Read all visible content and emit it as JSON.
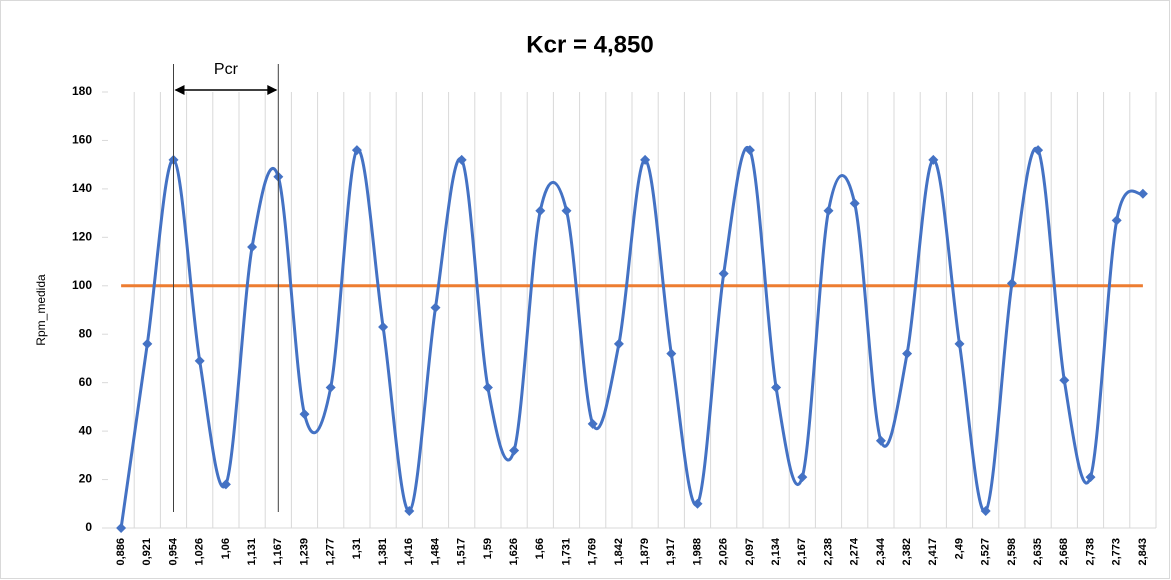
{
  "chart_data": {
    "type": "line",
    "title": "Kcr = 4,850",
    "y_label": "Rpm_medida",
    "annotation": "Pcr",
    "categories": [
      "0,886",
      "0,921",
      "0,954",
      "1,026",
      "1,06",
      "1,131",
      "1,167",
      "1,239",
      "1,277",
      "1,31",
      "1,381",
      "1,416",
      "1,484",
      "1,517",
      "1,59",
      "1,626",
      "1,66",
      "1,731",
      "1,769",
      "1,842",
      "1,879",
      "1,917",
      "1,988",
      "2,026",
      "2,097",
      "2,134",
      "2,167",
      "2,238",
      "2,274",
      "2,344",
      "2,382",
      "2,417",
      "2,49",
      "2,527",
      "2,598",
      "2,635",
      "2,668",
      "2,738",
      "2,773",
      "2,843"
    ],
    "series": [
      {
        "color": "#4472c4",
        "smooth": true,
        "markers": true,
        "values": [
          0,
          76,
          152,
          69,
          18,
          116,
          145,
          47,
          58,
          156,
          83,
          7,
          91,
          152,
          58,
          32,
          131,
          131,
          43,
          76,
          152,
          72,
          10,
          105,
          156,
          58,
          21,
          131,
          134,
          36,
          72,
          152,
          76,
          7,
          101,
          156,
          61,
          21,
          127,
          138
        ]
      },
      {
        "color": "#ed7d31",
        "smooth": false,
        "markers": false,
        "values": [
          100,
          100,
          100,
          100,
          100,
          100,
          100,
          100,
          100,
          100,
          100,
          100,
          100,
          100,
          100,
          100,
          100,
          100,
          100,
          100,
          100,
          100,
          100,
          100,
          100,
          100,
          100,
          100,
          100,
          100,
          100,
          100,
          100,
          100,
          100,
          100,
          100,
          100,
          100,
          100
        ]
      }
    ],
    "ylim": [
      0,
      180
    ],
    "yticks": [
      0,
      20,
      40,
      60,
      80,
      100,
      120,
      140,
      160,
      180
    ],
    "grid": true
  }
}
